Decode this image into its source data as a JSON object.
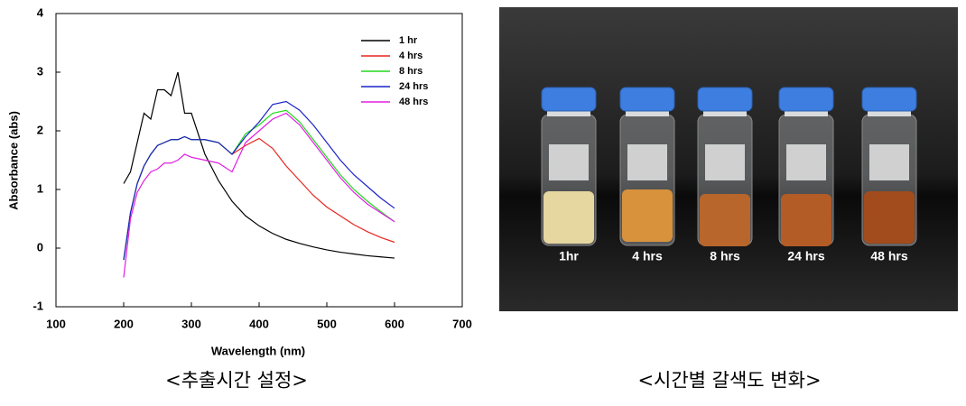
{
  "chart_data": {
    "type": "line",
    "x_label": "Wavelength (nm)",
    "y_label": "Absorbance (abs)",
    "x": [
      200,
      210,
      220,
      230,
      240,
      250,
      260,
      270,
      280,
      290,
      300,
      320,
      340,
      360,
      380,
      400,
      420,
      440,
      460,
      480,
      500,
      520,
      540,
      560,
      580,
      600
    ],
    "series": [
      {
        "name": "1 hr",
        "color": "#000000",
        "values": [
          1.1,
          1.3,
          1.8,
          2.3,
          2.2,
          2.7,
          2.7,
          2.6,
          3.0,
          2.3,
          2.3,
          1.6,
          1.15,
          0.8,
          0.55,
          0.38,
          0.25,
          0.15,
          0.08,
          0.02,
          -0.03,
          -0.07,
          -0.1,
          -0.13,
          -0.15,
          -0.17
        ]
      },
      {
        "name": "4 hrs",
        "color": "#e8251f",
        "values": [
          -0.2,
          0.6,
          1.1,
          1.4,
          1.6,
          1.75,
          1.8,
          1.85,
          1.85,
          1.9,
          1.85,
          1.85,
          1.8,
          1.6,
          1.75,
          1.87,
          1.7,
          1.4,
          1.15,
          0.9,
          0.7,
          0.55,
          0.4,
          0.28,
          0.18,
          0.1
        ]
      },
      {
        "name": "8 hrs",
        "color": "#22d81c",
        "values": [
          -0.2,
          0.6,
          1.1,
          1.4,
          1.6,
          1.75,
          1.8,
          1.85,
          1.85,
          1.9,
          1.85,
          1.85,
          1.8,
          1.6,
          1.95,
          2.1,
          2.3,
          2.35,
          2.15,
          1.85,
          1.55,
          1.25,
          1.0,
          0.8,
          0.62,
          0.45
        ]
      },
      {
        "name": "24 hrs",
        "color": "#1c22c8",
        "values": [
          -0.2,
          0.6,
          1.1,
          1.4,
          1.6,
          1.75,
          1.8,
          1.85,
          1.85,
          1.9,
          1.85,
          1.85,
          1.8,
          1.6,
          1.9,
          2.15,
          2.45,
          2.5,
          2.35,
          2.1,
          1.8,
          1.5,
          1.25,
          1.05,
          0.85,
          0.68
        ]
      },
      {
        "name": "48 hrs",
        "color": "#e020e0",
        "values": [
          -0.5,
          0.5,
          0.95,
          1.15,
          1.3,
          1.35,
          1.45,
          1.45,
          1.5,
          1.6,
          1.55,
          1.5,
          1.45,
          1.3,
          1.8,
          2.0,
          2.2,
          2.3,
          2.1,
          1.8,
          1.5,
          1.2,
          0.95,
          0.75,
          0.6,
          0.45
        ]
      }
    ],
    "xlim": [
      100,
      700
    ],
    "xticks": [
      100,
      200,
      300,
      400,
      500,
      600,
      700
    ],
    "ylim": [
      -1,
      4
    ],
    "yticks": [
      -1,
      0,
      1,
      2,
      3,
      4
    ],
    "grid": false,
    "legend": "top-right"
  },
  "photo": {
    "labels": [
      "1hr",
      "4 hrs",
      "8 hrs",
      "24 hrs",
      "48 hrs"
    ]
  },
  "captions": [
    "<추출시간 설정>",
    "<시간별 갈색도 변화>"
  ]
}
